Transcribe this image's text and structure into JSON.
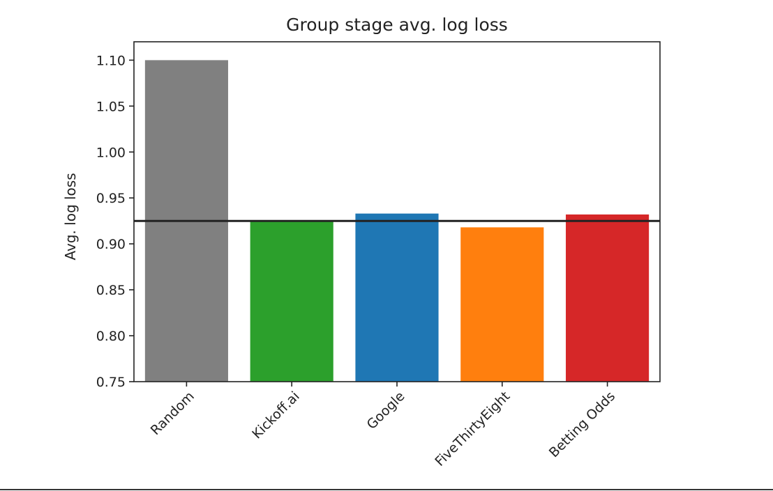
{
  "chart_data": {
    "type": "bar",
    "title": "Group stage avg. log loss",
    "xlabel": "",
    "ylabel": "Avg. log loss",
    "categories": [
      "Random",
      "Kickoff.ai",
      "Google",
      "FiveThirtyEight",
      "Betting Odds"
    ],
    "values": [
      1.1,
      0.925,
      0.933,
      0.918,
      0.932
    ],
    "colors": [
      "#808080",
      "#2ca02c",
      "#1f77b4",
      "#ff7f0e",
      "#d62728"
    ],
    "reference_line": {
      "value": 0.925,
      "color": "#222222"
    },
    "ylim": [
      0.75,
      1.12
    ],
    "yticks": [
      "0.75",
      "0.80",
      "0.85",
      "0.90",
      "0.95",
      "1.00",
      "1.05",
      "1.10"
    ],
    "grid": false,
    "legend": "none"
  }
}
